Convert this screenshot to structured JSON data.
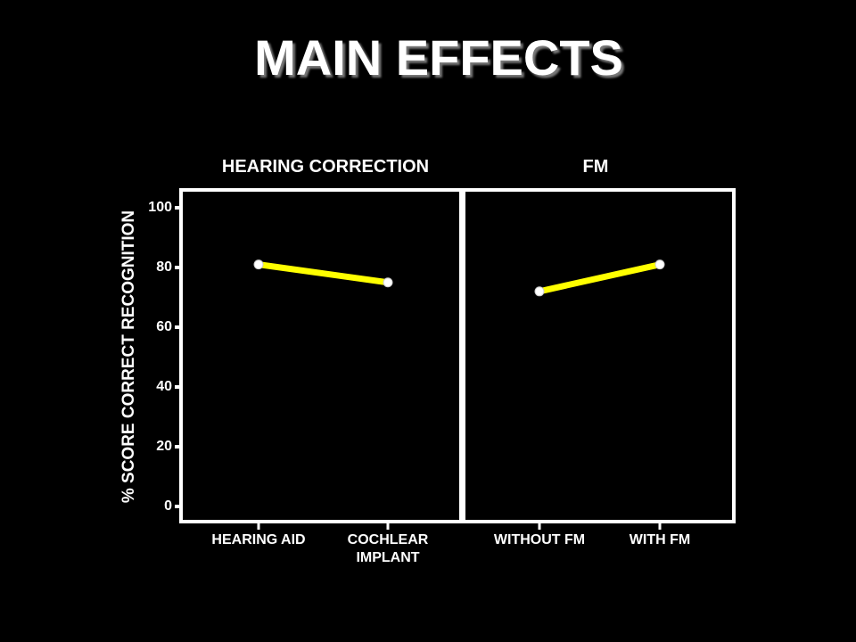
{
  "title": "MAIN EFFECTS",
  "chart_data": [
    {
      "type": "line",
      "title": "HEARING CORRECTION",
      "ylabel": "% SCORE CORRECT RECOGNITION",
      "categories": [
        "HEARING AID",
        "COCHLEAR IMPLANT"
      ],
      "values": [
        81,
        75
      ],
      "color": "#ffff00",
      "ylim": [
        0,
        100
      ],
      "yticks": [
        0,
        20,
        40,
        60,
        80,
        100
      ]
    },
    {
      "type": "line",
      "title": "FM",
      "categories": [
        "WITHOUT FM",
        "WITH FM"
      ],
      "values": [
        72,
        81
      ],
      "color": "#ffff00",
      "ylim": [
        0,
        100
      ]
    }
  ]
}
